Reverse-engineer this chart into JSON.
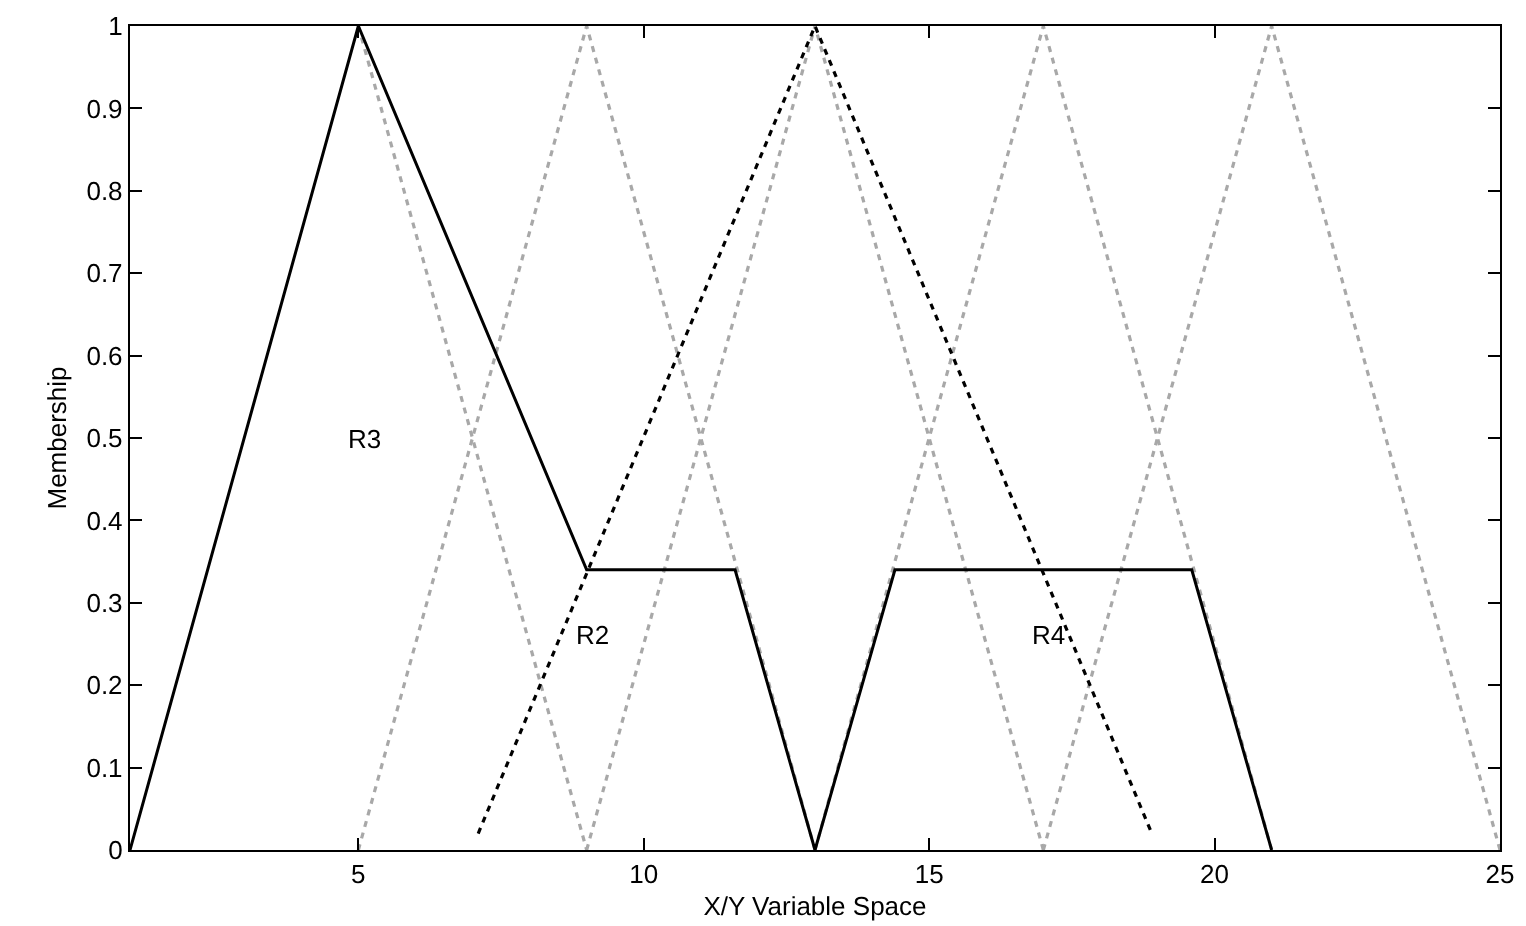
{
  "chart_data": {
    "type": "line",
    "xlabel": "X/Y Variable Space",
    "ylabel": "Membership",
    "xlim": [
      1,
      25
    ],
    "xticks": [
      5,
      10,
      15,
      20,
      25
    ],
    "ylim": [
      0,
      1
    ],
    "yticks": [
      0,
      0.1,
      0.2,
      0.3,
      0.4,
      0.5,
      0.6,
      0.7,
      0.8,
      0.9,
      1
    ],
    "grid": false,
    "series": [
      {
        "color": "#a8a8a8",
        "line_style": "dotted",
        "x": [
          5,
          9
        ],
        "values": [
          1,
          0
        ]
      },
      {
        "color": "#a8a8a8",
        "line_style": "dotted",
        "x": [
          5,
          9,
          13
        ],
        "values": [
          0,
          1,
          0
        ]
      },
      {
        "color": "#a8a8a8",
        "line_style": "dotted",
        "x": [
          9,
          13,
          17
        ],
        "values": [
          0,
          1,
          0
        ]
      },
      {
        "color": "#a8a8a8",
        "line_style": "dotted",
        "x": [
          13,
          17,
          21
        ],
        "values": [
          0,
          1,
          0
        ]
      },
      {
        "color": "#a8a8a8",
        "line_style": "dotted",
        "x": [
          17,
          21,
          25
        ],
        "values": [
          0,
          1,
          0
        ]
      },
      {
        "color": "#000000",
        "line_style": "dotted",
        "x": [
          7.1,
          13,
          18.9
        ],
        "values": [
          0.02,
          1,
          0.02
        ]
      },
      {
        "color": "#000000",
        "line_style": "solid",
        "x": [
          1,
          5,
          9,
          11.6,
          13,
          14.4,
          19.6,
          21
        ],
        "values": [
          0,
          1,
          0.34,
          0.34,
          0,
          0.34,
          0.34,
          0
        ]
      }
    ],
    "annotations": [
      "R3",
      "R2",
      "R4"
    ]
  }
}
